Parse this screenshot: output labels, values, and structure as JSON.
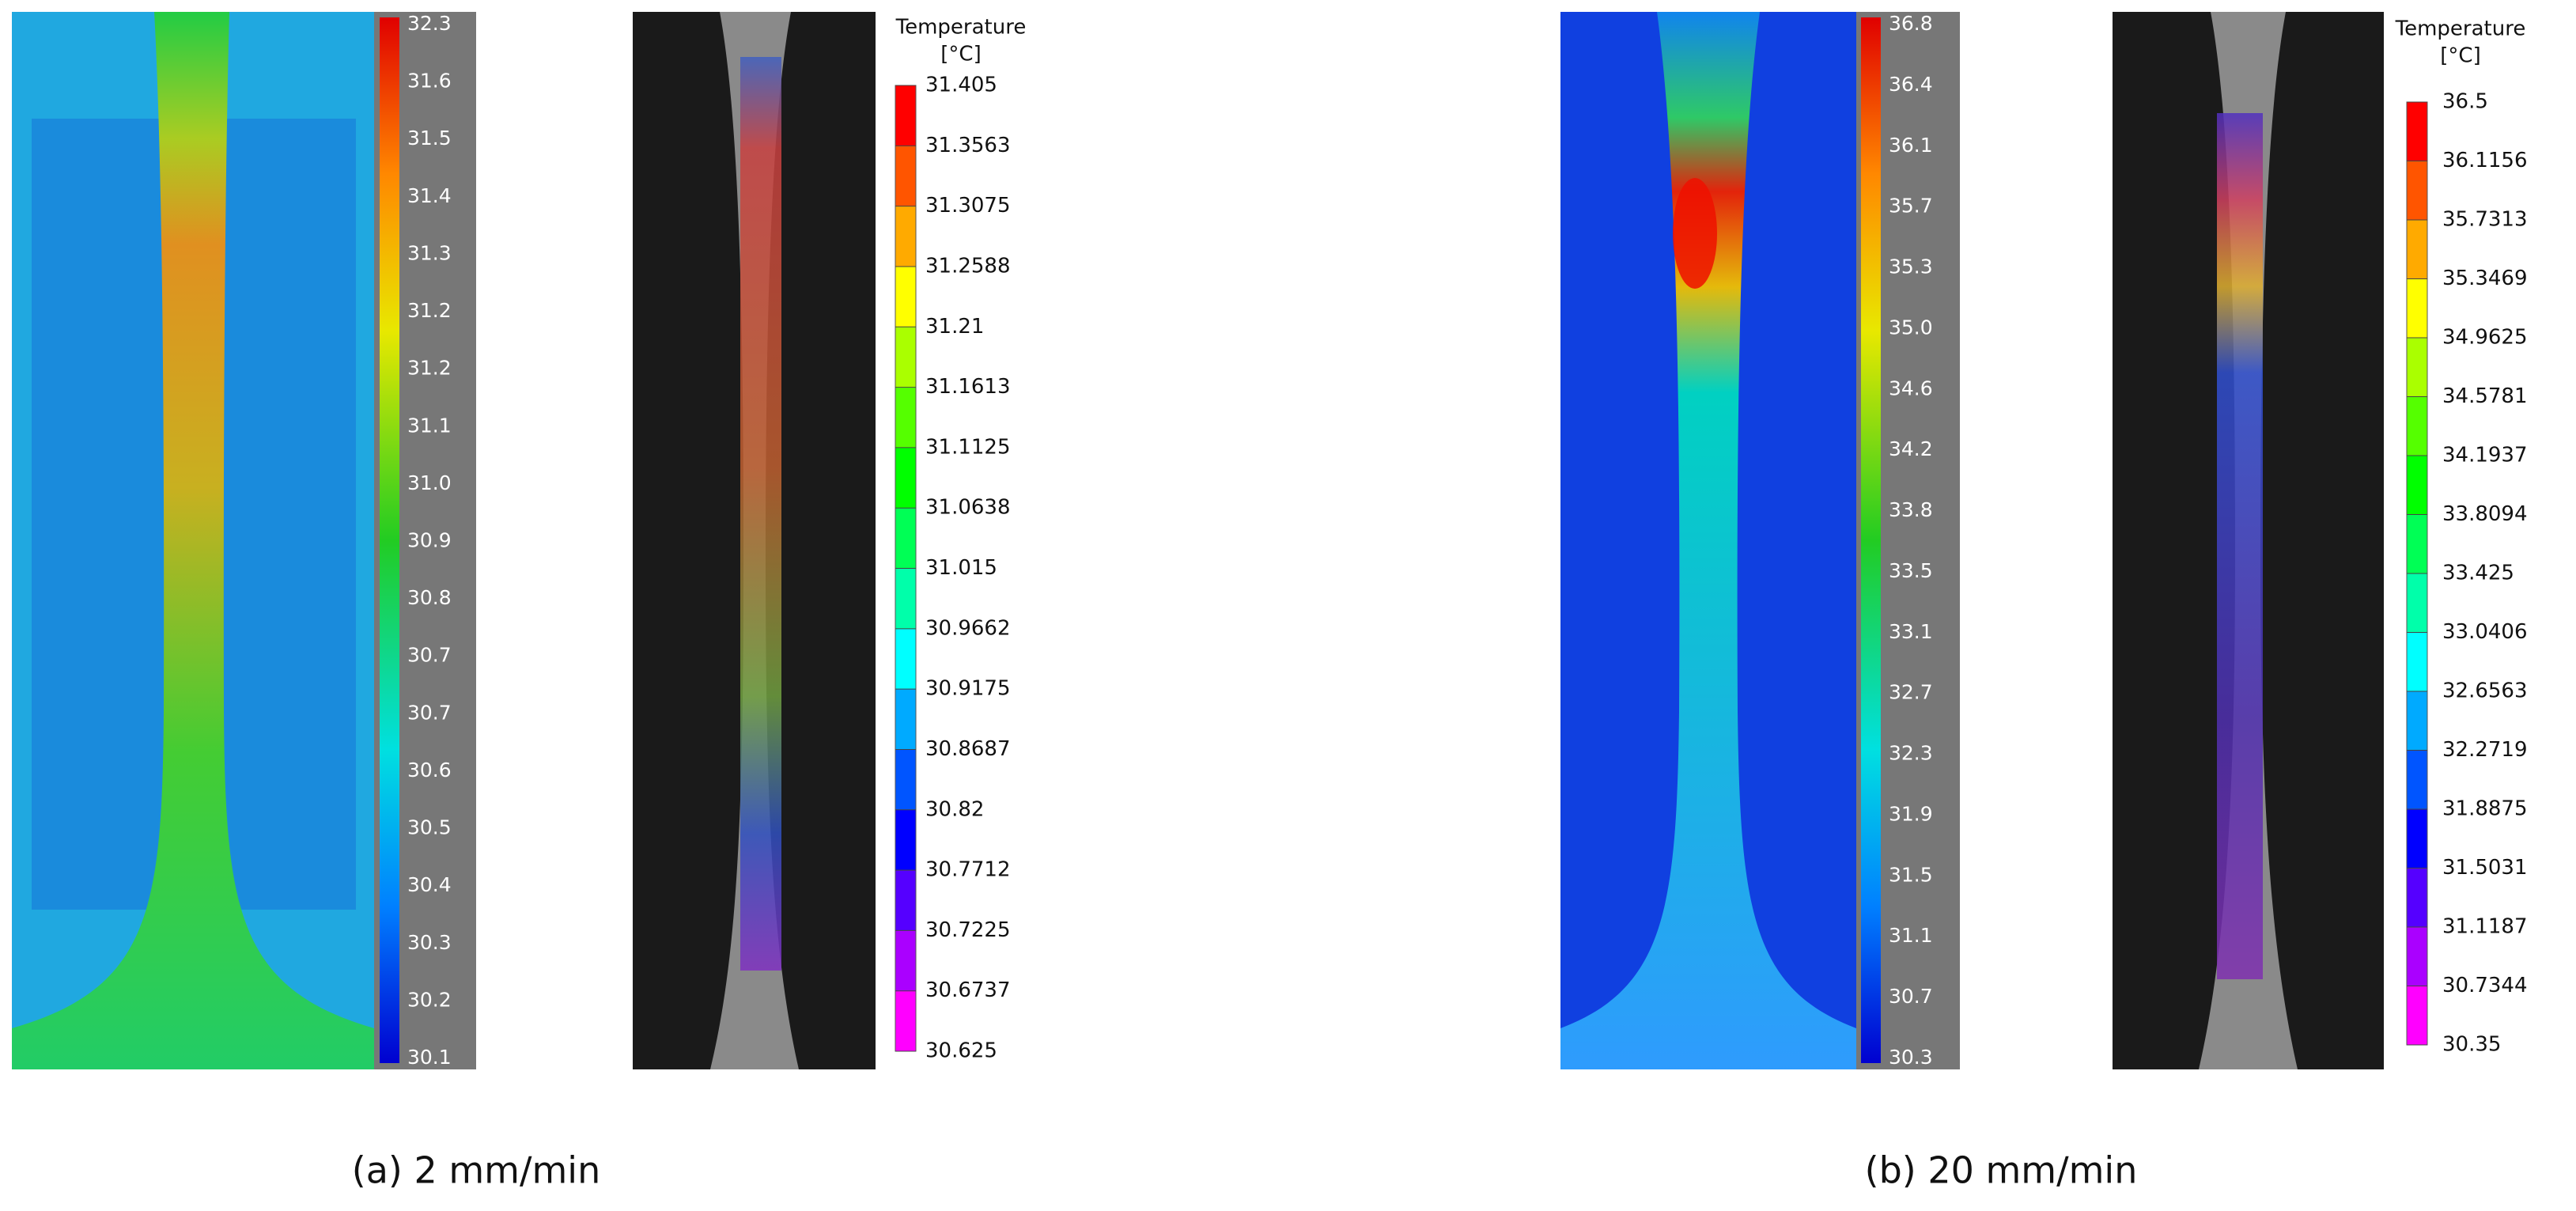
{
  "panels": [
    {
      "caption": "(a) 2 mm/min",
      "ir_scale": [
        "32.3",
        "31.6",
        "31.5",
        "31.4",
        "31.3",
        "31.2",
        "31.2",
        "31.1",
        "31.0",
        "30.9",
        "30.8",
        "30.7",
        "30.7",
        "30.6",
        "30.5",
        "30.4",
        "30.3",
        "30.2",
        "30.1"
      ],
      "legend": {
        "title": "Temperature",
        "unit": "[°C]",
        "labels": [
          "31.405",
          "31.3563",
          "31.3075",
          "31.2588",
          "31.21",
          "31.1613",
          "31.1125",
          "31.0638",
          "31.015",
          "30.9662",
          "30.9175",
          "30.8687",
          "30.82",
          "30.7712",
          "30.7225",
          "30.6737",
          "30.625"
        ]
      }
    },
    {
      "caption": "(b) 20 mm/min",
      "ir_scale": [
        "36.8",
        "36.4",
        "36.1",
        "35.7",
        "35.3",
        "35.0",
        "34.6",
        "34.2",
        "33.8",
        "33.5",
        "33.1",
        "32.7",
        "32.3",
        "31.9",
        "31.5",
        "31.1",
        "30.7",
        "30.3"
      ],
      "legend": {
        "title": "Temperature",
        "unit": "[°C]",
        "labels": [
          "36.5",
          "36.1156",
          "35.7313",
          "35.3469",
          "34.9625",
          "34.5781",
          "34.1937",
          "33.8094",
          "33.425",
          "33.0406",
          "32.6563",
          "32.2719",
          "31.8875",
          "31.5031",
          "31.1187",
          "30.7344",
          "30.35"
        ]
      }
    }
  ]
}
